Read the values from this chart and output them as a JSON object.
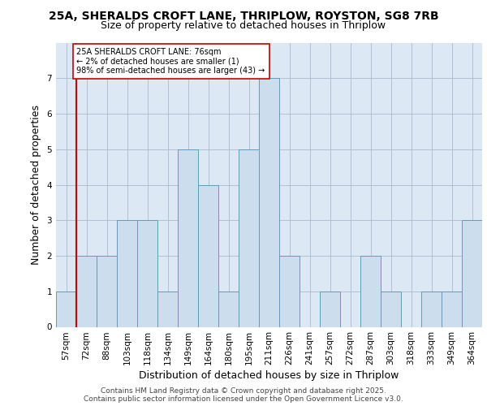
{
  "title_line1": "25A, SHERALDS CROFT LANE, THRIPLOW, ROYSTON, SG8 7RB",
  "title_line2": "Size of property relative to detached houses in Thriplow",
  "xlabel": "Distribution of detached houses by size in Thriplow",
  "ylabel": "Number of detached properties",
  "categories": [
    "57sqm",
    "72sqm",
    "88sqm",
    "103sqm",
    "118sqm",
    "134sqm",
    "149sqm",
    "164sqm",
    "180sqm",
    "195sqm",
    "211sqm",
    "226sqm",
    "241sqm",
    "257sqm",
    "272sqm",
    "287sqm",
    "303sqm",
    "318sqm",
    "333sqm",
    "349sqm",
    "364sqm"
  ],
  "values": [
    1,
    2,
    2,
    3,
    3,
    1,
    5,
    4,
    1,
    5,
    7,
    2,
    0,
    1,
    0,
    2,
    1,
    0,
    1,
    1,
    3
  ],
  "bar_color": "#ccdded",
  "bar_edge_color": "#6699bb",
  "vline_color": "#cc0000",
  "annotation_text": "25A SHERALDS CROFT LANE: 76sqm\n← 2% of detached houses are smaller (1)\n98% of semi-detached houses are larger (43) →",
  "annotation_box_color": "#ffffff",
  "annotation_box_edge": "#cc0000",
  "ylim": [
    0,
    8
  ],
  "yticks": [
    0,
    1,
    2,
    3,
    4,
    5,
    6,
    7
  ],
  "footnote": "Contains HM Land Registry data © Crown copyright and database right 2025.\nContains public sector information licensed under the Open Government Licence v3.0.",
  "plot_bg_color": "#dce9f5",
  "title_fontsize": 10,
  "subtitle_fontsize": 9,
  "tick_fontsize": 7.5,
  "label_fontsize": 9,
  "footnote_fontsize": 6.5
}
